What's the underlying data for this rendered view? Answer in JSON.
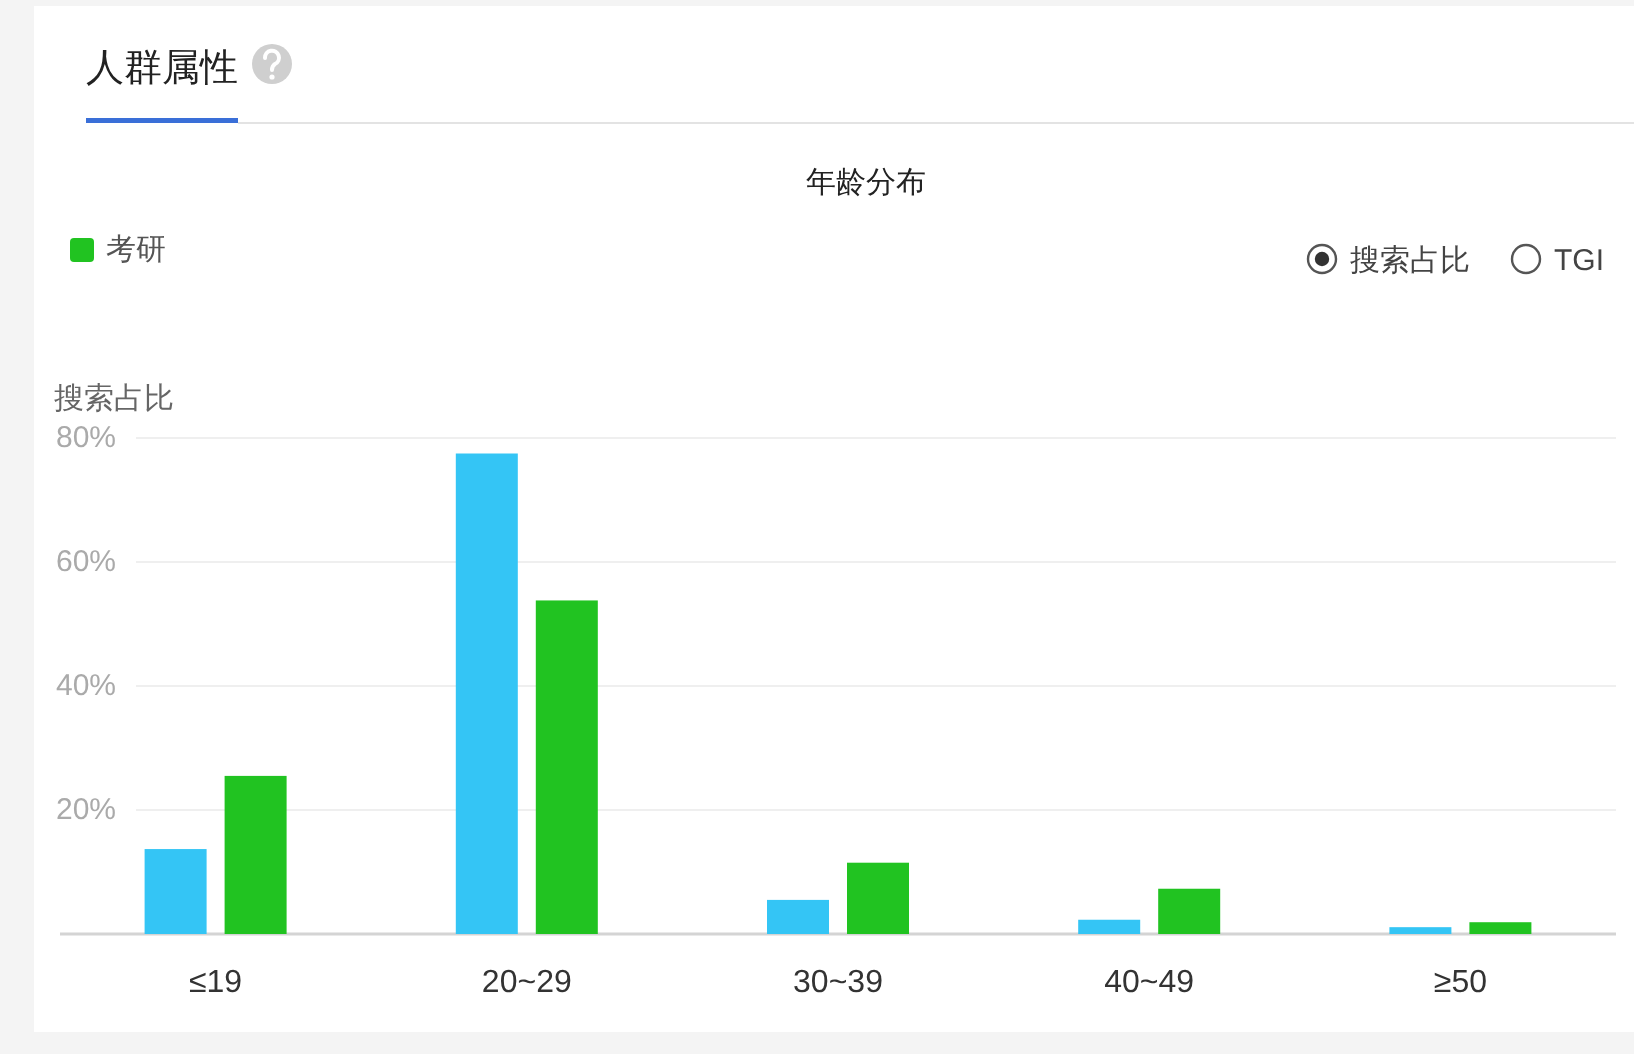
{
  "chart_data": {
    "type": "bar",
    "title": "年龄分布",
    "ylabel": "搜索占比",
    "categories": [
      "≤19",
      "20~29",
      "30~39",
      "40~49",
      "≥50"
    ],
    "series": [
      {
        "color": "#34c5f5",
        "values": [
          13.7,
          77.5,
          5.5,
          2.3,
          1.1
        ]
      },
      {
        "name": "考研",
        "color": "#21c321",
        "values": [
          25.5,
          53.8,
          11.5,
          7.3,
          1.9
        ]
      }
    ],
    "ylim": [
      0,
      80
    ],
    "yticks": [
      {
        "value": 20,
        "label": "20%"
      },
      {
        "value": 40,
        "label": "40%"
      },
      {
        "value": 60,
        "label": "60%"
      },
      {
        "value": 80,
        "label": "80%"
      }
    ],
    "grid": "y",
    "legend": "top left",
    "annotations": [
      "人群属性",
      "搜索占比",
      "TGI"
    ]
  }
}
